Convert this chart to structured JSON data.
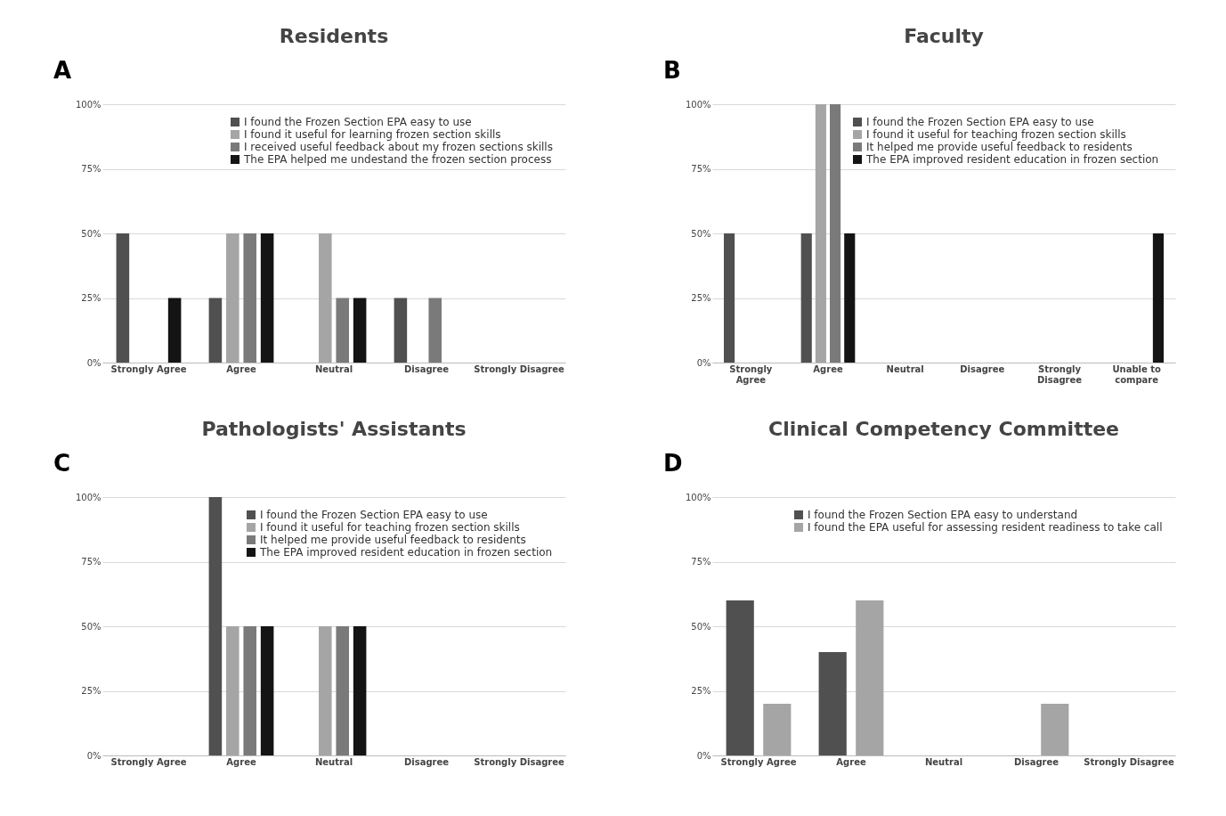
{
  "chart_data": [
    {
      "type": "bar",
      "title": "Residents",
      "annotations": [
        "A"
      ],
      "categories": [
        "Strongly Agree",
        "Agree",
        "Neutral",
        "Disagree",
        "Strongly Disagree"
      ],
      "ylim": [
        0,
        100
      ],
      "yticks": [
        {
          "value": 0,
          "label": "0%"
        },
        {
          "value": 25,
          "label": "25%"
        },
        {
          "value": 50,
          "label": "50%"
        },
        {
          "value": 75,
          "label": "75%"
        },
        {
          "value": 100,
          "label": "100%"
        }
      ],
      "grid": "y",
      "legend": "top right",
      "series": [
        {
          "name": "I found the Frozen Section EPA easy to use",
          "color": "#505050",
          "values": [
            50,
            25,
            0,
            25,
            0
          ]
        },
        {
          "name": "I found it useful for learning frozen section skills",
          "color": "#a5a5a5",
          "values": [
            0,
            50,
            50,
            0,
            0
          ]
        },
        {
          "name": "I received useful feedback about my frozen sections skills",
          "color": "#7a7a7a",
          "values": [
            0,
            50,
            25,
            25,
            0
          ]
        },
        {
          "name": "The EPA helped me undestand the frozen section process",
          "color": "#141414",
          "values": [
            25,
            50,
            25,
            0,
            0
          ]
        }
      ]
    },
    {
      "type": "bar",
      "title": "Faculty",
      "annotations": [
        "B"
      ],
      "categories": [
        "Strongly Agree",
        "Agree",
        "Neutral",
        "Disagree",
        "Strongly Disagree",
        "Unable to compare"
      ],
      "ylim": [
        0,
        100
      ],
      "yticks": [
        {
          "value": 0,
          "label": "0%"
        },
        {
          "value": 25,
          "label": "25%"
        },
        {
          "value": 50,
          "label": "50%"
        },
        {
          "value": 75,
          "label": "75%"
        },
        {
          "value": 100,
          "label": "100%"
        }
      ],
      "grid": "y",
      "legend": "top right",
      "series": [
        {
          "name": "I found the Frozen Section EPA easy to use",
          "color": "#505050",
          "values": [
            50,
            50,
            0,
            0,
            0,
            0
          ]
        },
        {
          "name": "I found it useful for teaching frozen section skills",
          "color": "#a5a5a5",
          "values": [
            0,
            100,
            0,
            0,
            0,
            0
          ]
        },
        {
          "name": "It helped me provide useful feedback to residents",
          "color": "#7a7a7a",
          "values": [
            0,
            100,
            0,
            0,
            0,
            0
          ]
        },
        {
          "name": "The EPA  improved resident education in frozen section",
          "color": "#141414",
          "values": [
            0,
            50,
            0,
            0,
            0,
            50
          ]
        }
      ]
    },
    {
      "type": "bar",
      "title": "Pathologists' Assistants",
      "annotations": [
        "C"
      ],
      "categories": [
        "Strongly Agree",
        "Agree",
        "Neutral",
        "Disagree",
        "Strongly Disagree"
      ],
      "ylim": [
        0,
        100
      ],
      "yticks": [
        {
          "value": 0,
          "label": "0%"
        },
        {
          "value": 25,
          "label": "25%"
        },
        {
          "value": 50,
          "label": "50%"
        },
        {
          "value": 75,
          "label": "75%"
        },
        {
          "value": 100,
          "label": "100%"
        }
      ],
      "grid": "y",
      "legend": "top right",
      "series": [
        {
          "name": "I found the Frozen Section EPA easy to use",
          "color": "#505050",
          "values": [
            0,
            100,
            0,
            0,
            0
          ]
        },
        {
          "name": "I found it useful for teaching frozen section skills",
          "color": "#a5a5a5",
          "values": [
            0,
            50,
            50,
            0,
            0
          ]
        },
        {
          "name": "It helped me provide useful feedback to residents",
          "color": "#7a7a7a",
          "values": [
            0,
            50,
            50,
            0,
            0
          ]
        },
        {
          "name": "The EPA improved resident education in frozen section",
          "color": "#141414",
          "values": [
            0,
            50,
            50,
            0,
            0
          ]
        }
      ]
    },
    {
      "type": "bar",
      "title": "Clinical Competency Committee",
      "annotations": [
        "D"
      ],
      "categories": [
        "Strongly Agree",
        "Agree",
        "Neutral",
        "Disagree",
        "Strongly Disagree"
      ],
      "ylim": [
        0,
        100
      ],
      "yticks": [
        {
          "value": 0,
          "label": "0%"
        },
        {
          "value": 25,
          "label": "25%"
        },
        {
          "value": 50,
          "label": "50%"
        },
        {
          "value": 75,
          "label": "75%"
        },
        {
          "value": 100,
          "label": "100%"
        }
      ],
      "grid": "y",
      "legend": "top right",
      "series": [
        {
          "name": "I found the Frozen Section EPA easy to understand",
          "color": "#505050",
          "values": [
            60,
            40,
            0,
            0,
            0
          ]
        },
        {
          "name": "I found the EPA useful for assessing resident readiness to take call",
          "color": "#a5a5a5",
          "values": [
            20,
            60,
            0,
            20,
            0
          ]
        }
      ]
    }
  ]
}
